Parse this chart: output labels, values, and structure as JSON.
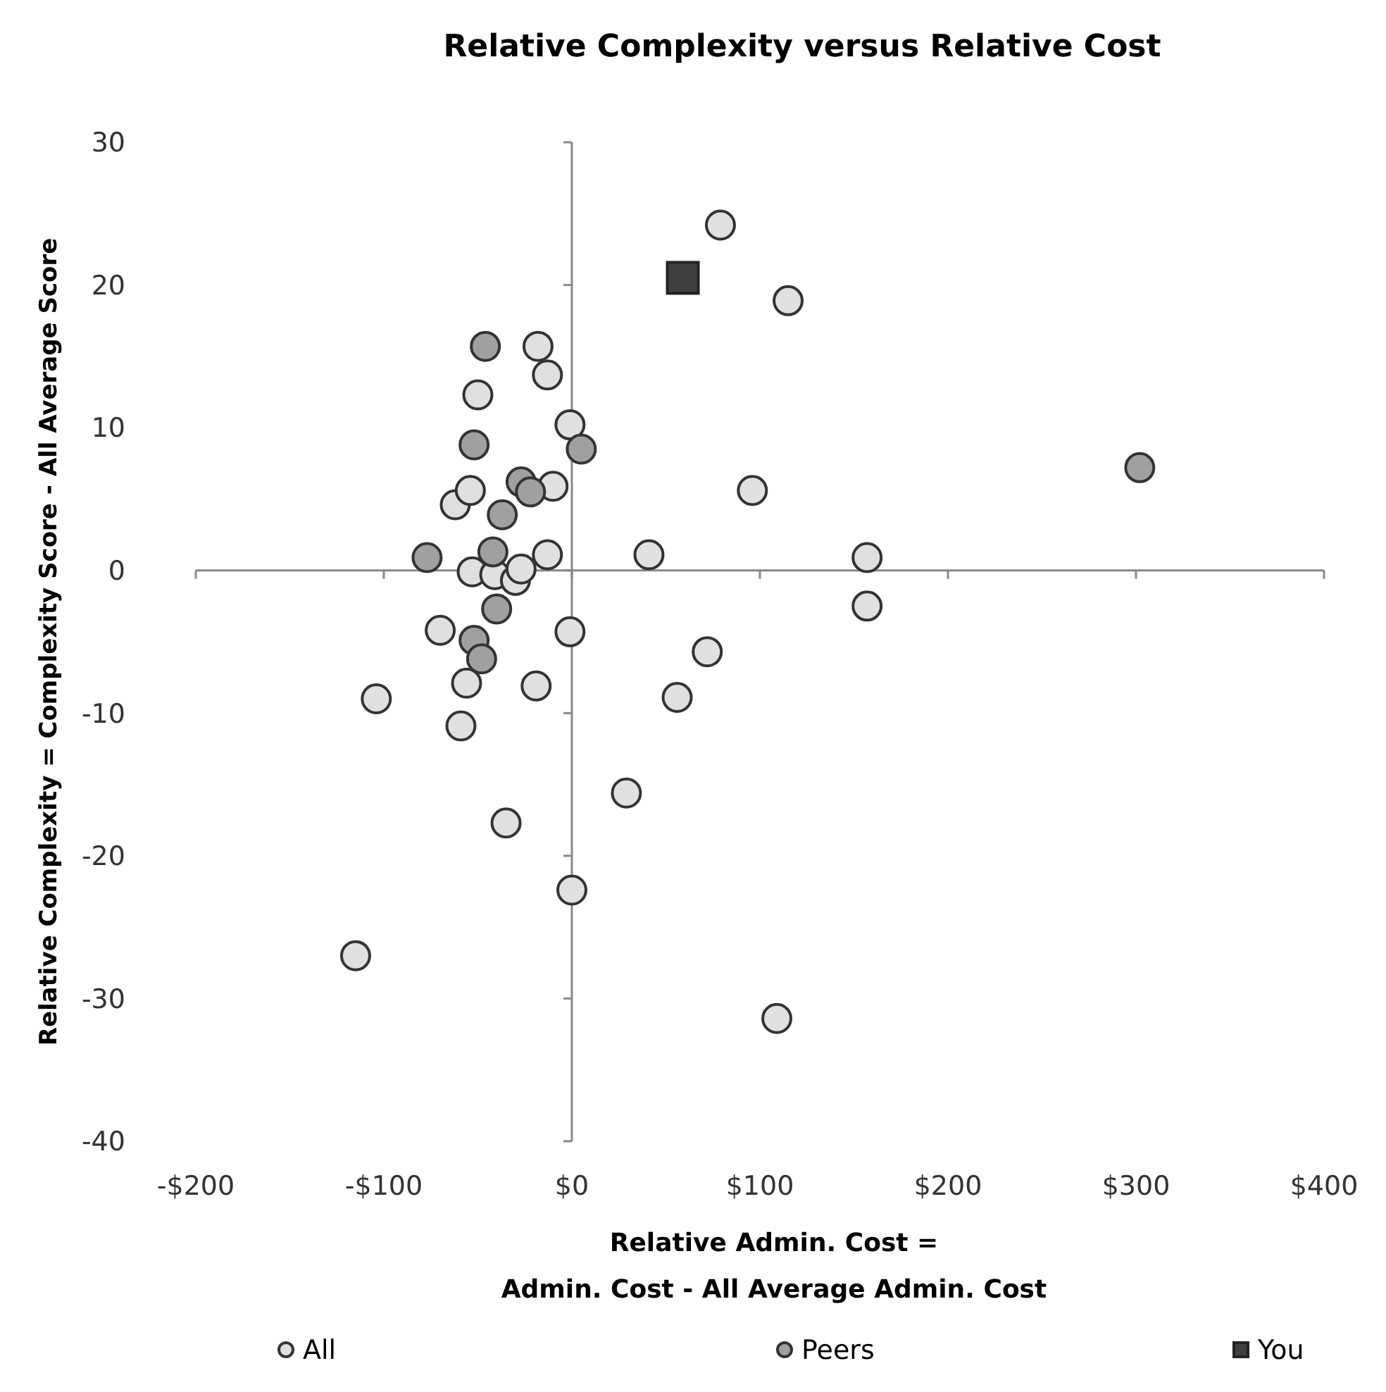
{
  "chart_data": {
    "type": "scatter",
    "title": "Relative Complexity versus Relative Cost",
    "xlabel": "Relative Admin. Cost =\nAdmin. Cost - All Average Admin. Cost",
    "ylabel": "Relative Complexity = Complexity Score - All Average Score",
    "xlim": [
      -200,
      400
    ],
    "xticks": [
      {
        "value": -200,
        "label": "-$200"
      },
      {
        "value": -100,
        "label": "-$100"
      },
      {
        "value": 0,
        "label": "$0"
      },
      {
        "value": 100,
        "label": "$100"
      },
      {
        "value": 200,
        "label": "$200"
      },
      {
        "value": 300,
        "label": "$300"
      },
      {
        "value": 400,
        "label": "$400"
      }
    ],
    "ylim": [
      -40,
      30
    ],
    "yticks": [
      -40,
      -30,
      -20,
      -10,
      0,
      10,
      20,
      30
    ],
    "legend": "bottom",
    "series": [
      {
        "name": "All",
        "color": "#e0e0e0",
        "marker": "circle",
        "x": [
          79,
          115,
          -18,
          -13,
          -50,
          -1,
          -10,
          96,
          -62,
          -54,
          -13,
          41,
          157,
          -53,
          -41,
          -30,
          -27,
          157,
          -70,
          -1,
          72,
          -56,
          -19,
          56,
          -104,
          -59,
          29,
          -35,
          0,
          -115,
          109
        ],
        "values": [
          24.2,
          18.9,
          15.7,
          13.7,
          12.3,
          10.2,
          5.9,
          5.6,
          4.6,
          5.6,
          1.1,
          1.1,
          0.9,
          -0.1,
          -0.3,
          -0.7,
          0.1,
          -2.5,
          -4.2,
          -4.3,
          -5.7,
          -7.9,
          -8.1,
          -8.9,
          -9,
          -10.9,
          -15.6,
          -17.7,
          -22.4,
          -27,
          -31.4
        ]
      },
      {
        "name": "Peers",
        "color": "#a0a0a0",
        "marker": "circle",
        "x": [
          -46,
          -52,
          5,
          -27,
          -22,
          -37,
          -77,
          -42,
          -40,
          -52,
          -48,
          302
        ],
        "values": [
          15.7,
          8.8,
          8.5,
          6.2,
          5.5,
          3.9,
          0.9,
          1.3,
          -2.7,
          -4.9,
          -6.2,
          7.2
        ]
      },
      {
        "name": "You",
        "color": "#404040",
        "marker": "square",
        "x": [
          59
        ],
        "values": [
          20.5
        ]
      }
    ]
  }
}
